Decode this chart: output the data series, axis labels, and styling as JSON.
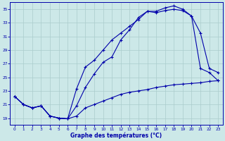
{
  "title": "Graphe des températures (°C)",
  "bg_color": "#cce8e8",
  "grid_color": "#aacccc",
  "line_color": "#0000aa",
  "xlim": [
    -0.5,
    23.5
  ],
  "ylim": [
    18.0,
    36.0
  ],
  "yticks": [
    19,
    21,
    23,
    25,
    27,
    29,
    31,
    33,
    35
  ],
  "xticks": [
    0,
    1,
    2,
    3,
    4,
    5,
    6,
    7,
    8,
    9,
    10,
    11,
    12,
    13,
    14,
    15,
    16,
    17,
    18,
    19,
    20,
    21,
    22,
    23
  ],
  "series_max": {
    "x": [
      0,
      1,
      2,
      3,
      4,
      5,
      6,
      7,
      8,
      9,
      10,
      11,
      12,
      13,
      14,
      15,
      16,
      17,
      18,
      19,
      20,
      21,
      22,
      23
    ],
    "y": [
      22.2,
      21.0,
      20.5,
      20.8,
      19.3,
      19.0,
      18.9,
      20.8,
      23.5,
      25.5,
      27.2,
      28.0,
      30.5,
      32.0,
      33.8,
      34.7,
      34.7,
      35.2,
      35.5,
      35.0,
      34.0,
      31.5,
      26.3,
      25.7
    ]
  },
  "series_cur": {
    "x": [
      0,
      1,
      2,
      3,
      4,
      5,
      6,
      7,
      8,
      9,
      10,
      11,
      12,
      13,
      14,
      15,
      16,
      17,
      18,
      19,
      20,
      21,
      22,
      23
    ],
    "y": [
      22.2,
      21.0,
      20.5,
      20.8,
      19.3,
      19.0,
      18.9,
      23.3,
      26.5,
      27.5,
      29.0,
      30.5,
      31.5,
      32.5,
      33.5,
      34.7,
      34.5,
      34.8,
      35.0,
      34.8,
      34.0,
      26.3,
      25.7,
      24.5
    ]
  },
  "series_min": {
    "x": [
      0,
      1,
      2,
      3,
      4,
      5,
      6,
      7,
      8,
      9,
      10,
      11,
      12,
      13,
      14,
      15,
      16,
      17,
      18,
      19,
      20,
      21,
      22,
      23
    ],
    "y": [
      22.2,
      21.0,
      20.5,
      20.8,
      19.3,
      19.0,
      18.9,
      19.3,
      20.5,
      21.0,
      21.5,
      22.0,
      22.5,
      22.8,
      23.0,
      23.2,
      23.5,
      23.7,
      23.9,
      24.0,
      24.1,
      24.2,
      24.4,
      24.5
    ]
  },
  "figsize": [
    3.2,
    2.0
  ],
  "dpi": 100
}
